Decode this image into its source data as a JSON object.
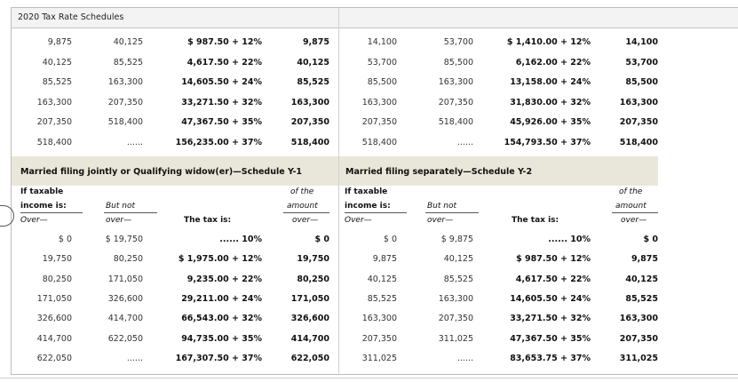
{
  "window": {
    "title": "2020 Tax Rate Schedules"
  },
  "top_left_rows": [
    [
      "9,875",
      "40,125",
      "$ 987.50 + 12%",
      "9,875"
    ],
    [
      "40,125",
      "85,525",
      "4,617.50 + 22%",
      "40,125"
    ],
    [
      "85,525",
      "163,300",
      "14,605.50 + 24%",
      "85,525"
    ],
    [
      "163,300",
      "207,350",
      "33,271.50 + 32%",
      "163,300"
    ],
    [
      "207,350",
      "518,400",
      "47,367.50 + 35%",
      "207,350"
    ],
    [
      "518,400",
      "......",
      "156,235.00 + 37%",
      "518,400"
    ]
  ],
  "top_right_rows": [
    [
      "14,100",
      "53,700",
      "$ 1,410.00 + 12%",
      "14,100"
    ],
    [
      "53,700",
      "85,500",
      "6,162.00 + 22%",
      "53,700"
    ],
    [
      "85,500",
      "163,300",
      "13,158.00 + 24%",
      "85,500"
    ],
    [
      "163,300",
      "207,350",
      "31,830.00 + 32%",
      "163,300"
    ],
    [
      "207,350",
      "518,400",
      "45,926.00 + 35%",
      "207,350"
    ],
    [
      "518,400",
      "......",
      "154,793.50 + 37%",
      "518,400"
    ]
  ],
  "schedule_y1": {
    "title": "Married filing jointly or Qualifying widow(er)—Schedule Y-1",
    "headers": {
      "if_taxable": "If taxable",
      "income_is": "income is:",
      "over": "Over—",
      "but_not": "But not",
      "but_not_over": "over—",
      "tax_is": "The tax is:",
      "of_the": "of the",
      "amount": "amount",
      "amount_over": "over—"
    },
    "rows": [
      [
        "$ 0",
        "$ 19,750",
        "...... 10%",
        "$ 0"
      ],
      [
        "19,750",
        "80,250",
        "$ 1,975.00 + 12%",
        "19,750"
      ],
      [
        "80,250",
        "171,050",
        "9,235.00 + 22%",
        "80,250"
      ],
      [
        "171,050",
        "326,600",
        "29,211.00 + 24%",
        "171,050"
      ],
      [
        "326,600",
        "414,700",
        "66,543.00 + 32%",
        "326,600"
      ],
      [
        "414,700",
        "622,050",
        "94,735.00 + 35%",
        "414,700"
      ],
      [
        "622,050",
        "......",
        "167,307.50 + 37%",
        "622,050"
      ]
    ]
  },
  "schedule_y2": {
    "title": "Married filing separately—Schedule Y-2",
    "headers": {
      "if_taxable": "If taxable",
      "income_is": "income is:",
      "over": "Over—",
      "but_not": "But not",
      "but_not_over": "over—",
      "tax_is": "The tax is:",
      "of_the": "of the",
      "amount": "amount",
      "amount_over": "over—"
    },
    "rows": [
      [
        "$ 0",
        "$ 9,875",
        "...... 10%",
        "$ 0"
      ],
      [
        "9,875",
        "40,125",
        "$ 987.50 + 12%",
        "9,875"
      ],
      [
        "40,125",
        "85,525",
        "4,617.50 + 22%",
        "40,125"
      ],
      [
        "85,525",
        "163,300",
        "14,605.50 + 24%",
        "85,525"
      ],
      [
        "163,300",
        "207,350",
        "33,271.50 + 32%",
        "163,300"
      ],
      [
        "207,350",
        "311,025",
        "47,367.50 + 35%",
        "207,350"
      ],
      [
        "311,025",
        "......",
        "83,653.75 + 37%",
        "311,025"
      ]
    ]
  }
}
